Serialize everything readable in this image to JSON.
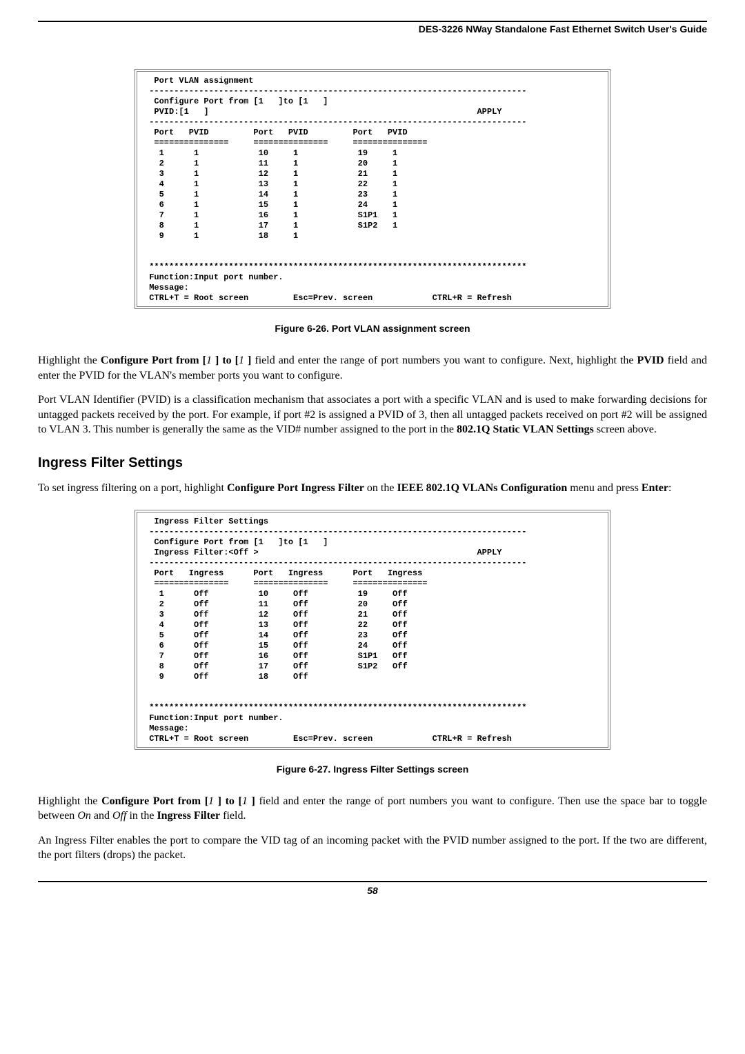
{
  "header": "DES-3226 NWay Standalone Fast Ethernet Switch User's Guide",
  "terminal1": {
    "title": "Port VLAN assignment",
    "config_label": "Configure Port from [",
    "config_suffix": "]to [1   ]",
    "pvid_label": "PVID:[1   ]",
    "apply": "APPLY",
    "col1": "Port   PVID",
    "col2": "Port   PVID",
    "col3": "Port   PVID",
    "rows": [
      [
        " 1      1",
        " 10     1",
        " 19     1"
      ],
      [
        " 2      1",
        " 11     1",
        " 20     1"
      ],
      [
        " 3      1",
        " 12     1",
        " 21     1"
      ],
      [
        " 4      1",
        " 13     1",
        " 22     1"
      ],
      [
        " 5      1",
        " 14     1",
        " 23     1"
      ],
      [
        " 6      1",
        " 15     1",
        " 24     1"
      ],
      [
        " 7      1",
        " 16     1",
        " S1P1   1"
      ],
      [
        " 8      1",
        " 17     1",
        " S1P2   1"
      ],
      [
        " 9      1",
        " 18     1",
        "          "
      ]
    ],
    "stars": "****************************************************************************",
    "func": "Function:Input port number.",
    "msg": "Message:",
    "footer_left": "CTRL+T = Root screen",
    "footer_mid": "Esc=Prev. screen",
    "footer_right": "CTRL+R = Refresh"
  },
  "caption1": "Figure 6-26.  Port VLAN assignment screen",
  "para1_a": "Highlight the ",
  "para1_b": "Configure Port from [",
  "para1_c": "1 ",
  "para1_d": "] to [",
  "para1_e": "1 ",
  "para1_f": "]",
  "para1_g": " field and enter the range of port numbers you want to configure. Next, highlight the ",
  "para1_h": "PVID",
  "para1_i": " field and enter the PVID for the VLAN's member ports you want to configure.",
  "para2_a": "Port VLAN Identifier (PVID) is a classification mechanism that associates a port with a specific VLAN and is used to make forwarding decisions for untagged packets received by the port. For example, if port #2 is assigned a PVID of 3, then all untagged packets received on port #2 will be assigned to VLAN 3. This number is generally the same as the VID# number assigned to the port in the ",
  "para2_b": "802.1Q Static VLAN Settings",
  "para2_c": " screen above.",
  "section": "Ingress Filter Settings",
  "para3_a": "To set ingress filtering on a port, highlight ",
  "para3_b": "Configure Port Ingress Filter",
  "para3_c": " on the ",
  "para3_d": "IEEE 802.1Q VLANs Configuration",
  "para3_e": " menu and press ",
  "para3_f": "Enter",
  "para3_g": ":",
  "terminal2": {
    "title": "Ingress Filter Settings",
    "config_label": "Configure Port from [",
    "config_suffix": "]to [1   ]",
    "filter_label": "Ingress Filter:<Off >",
    "apply": "APPLY",
    "col1": "Port   Ingress",
    "col2": "Port   Ingress",
    "col3": "Port   Ingress",
    "rows": [
      [
        " 1      Off",
        " 10     Off",
        " 19     Off"
      ],
      [
        " 2      Off",
        " 11     Off",
        " 20     Off"
      ],
      [
        " 3      Off",
        " 12     Off",
        " 21     Off"
      ],
      [
        " 4      Off",
        " 13     Off",
        " 22     Off"
      ],
      [
        " 5      Off",
        " 14     Off",
        " 23     Off"
      ],
      [
        " 6      Off",
        " 15     Off",
        " 24     Off"
      ],
      [
        " 7      Off",
        " 16     Off",
        " S1P1   Off"
      ],
      [
        " 8      Off",
        " 17     Off",
        " S1P2   Off"
      ],
      [
        " 9      Off",
        " 18     Off",
        "            "
      ]
    ],
    "stars": "****************************************************************************",
    "func": "Function:Input port number.",
    "msg": "Message:",
    "footer_left": "CTRL+T = Root screen",
    "footer_mid": "Esc=Prev. screen",
    "footer_right": "CTRL+R = Refresh"
  },
  "caption2": "Figure 6-27.  Ingress Filter Settings screen",
  "para4_a": "Highlight the ",
  "para4_b": "Configure Port from [",
  "para4_c": "1 ",
  "para4_d": "] to [",
  "para4_e": "1 ",
  "para4_f": "]",
  "para4_g": " field and enter the range of port numbers you want to configure. Then use the space bar to toggle between ",
  "para4_h": "On",
  "para4_i": " and ",
  "para4_j": "Off",
  "para4_k": " in the ",
  "para4_l": "Ingress Filter",
  "para4_m": " field.",
  "para5": "An Ingress Filter enables the port to compare the VID tag of an incoming packet with the PVID number assigned to the port. If the two are different, the port filters (drops) the packet.",
  "pagenum": "58"
}
